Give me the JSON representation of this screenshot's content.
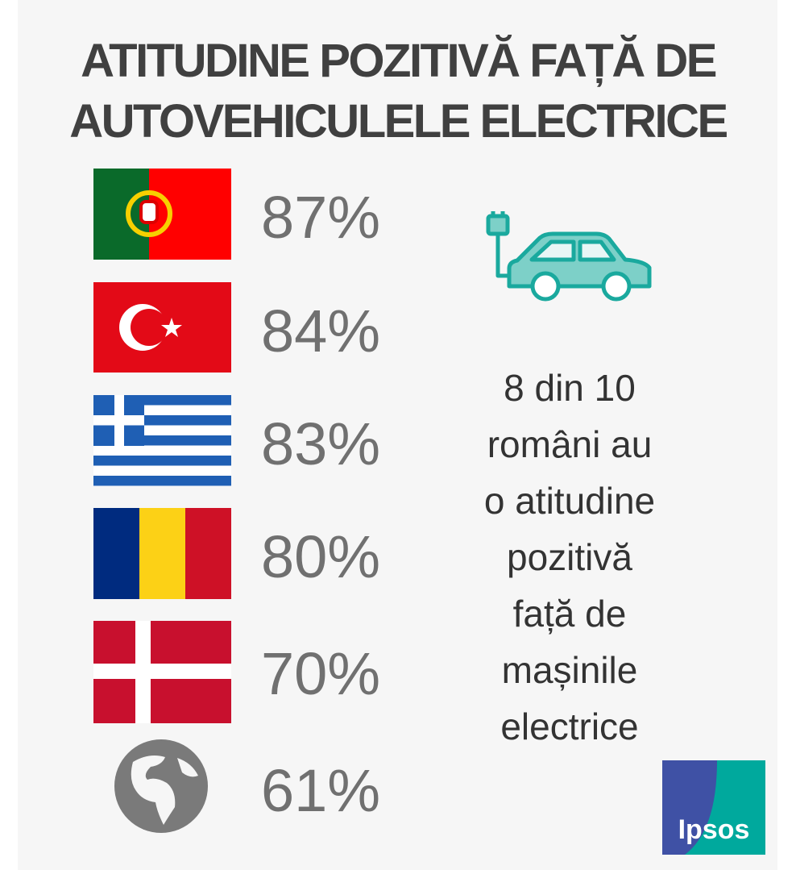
{
  "title": [
    "ATITUDINE POZITIVĂ FAȚĂ DE",
    "AUTOVEHICULELE ELECTRICE"
  ],
  "percentages": [
    "87%",
    "84%",
    "83%",
    "80%",
    "70%",
    "61%"
  ],
  "note": [
    "8 din 10",
    "români au",
    "o atitudine",
    "pozitivă",
    "față de",
    "mașinile",
    "electrice"
  ],
  "logo": "Ipsos"
}
